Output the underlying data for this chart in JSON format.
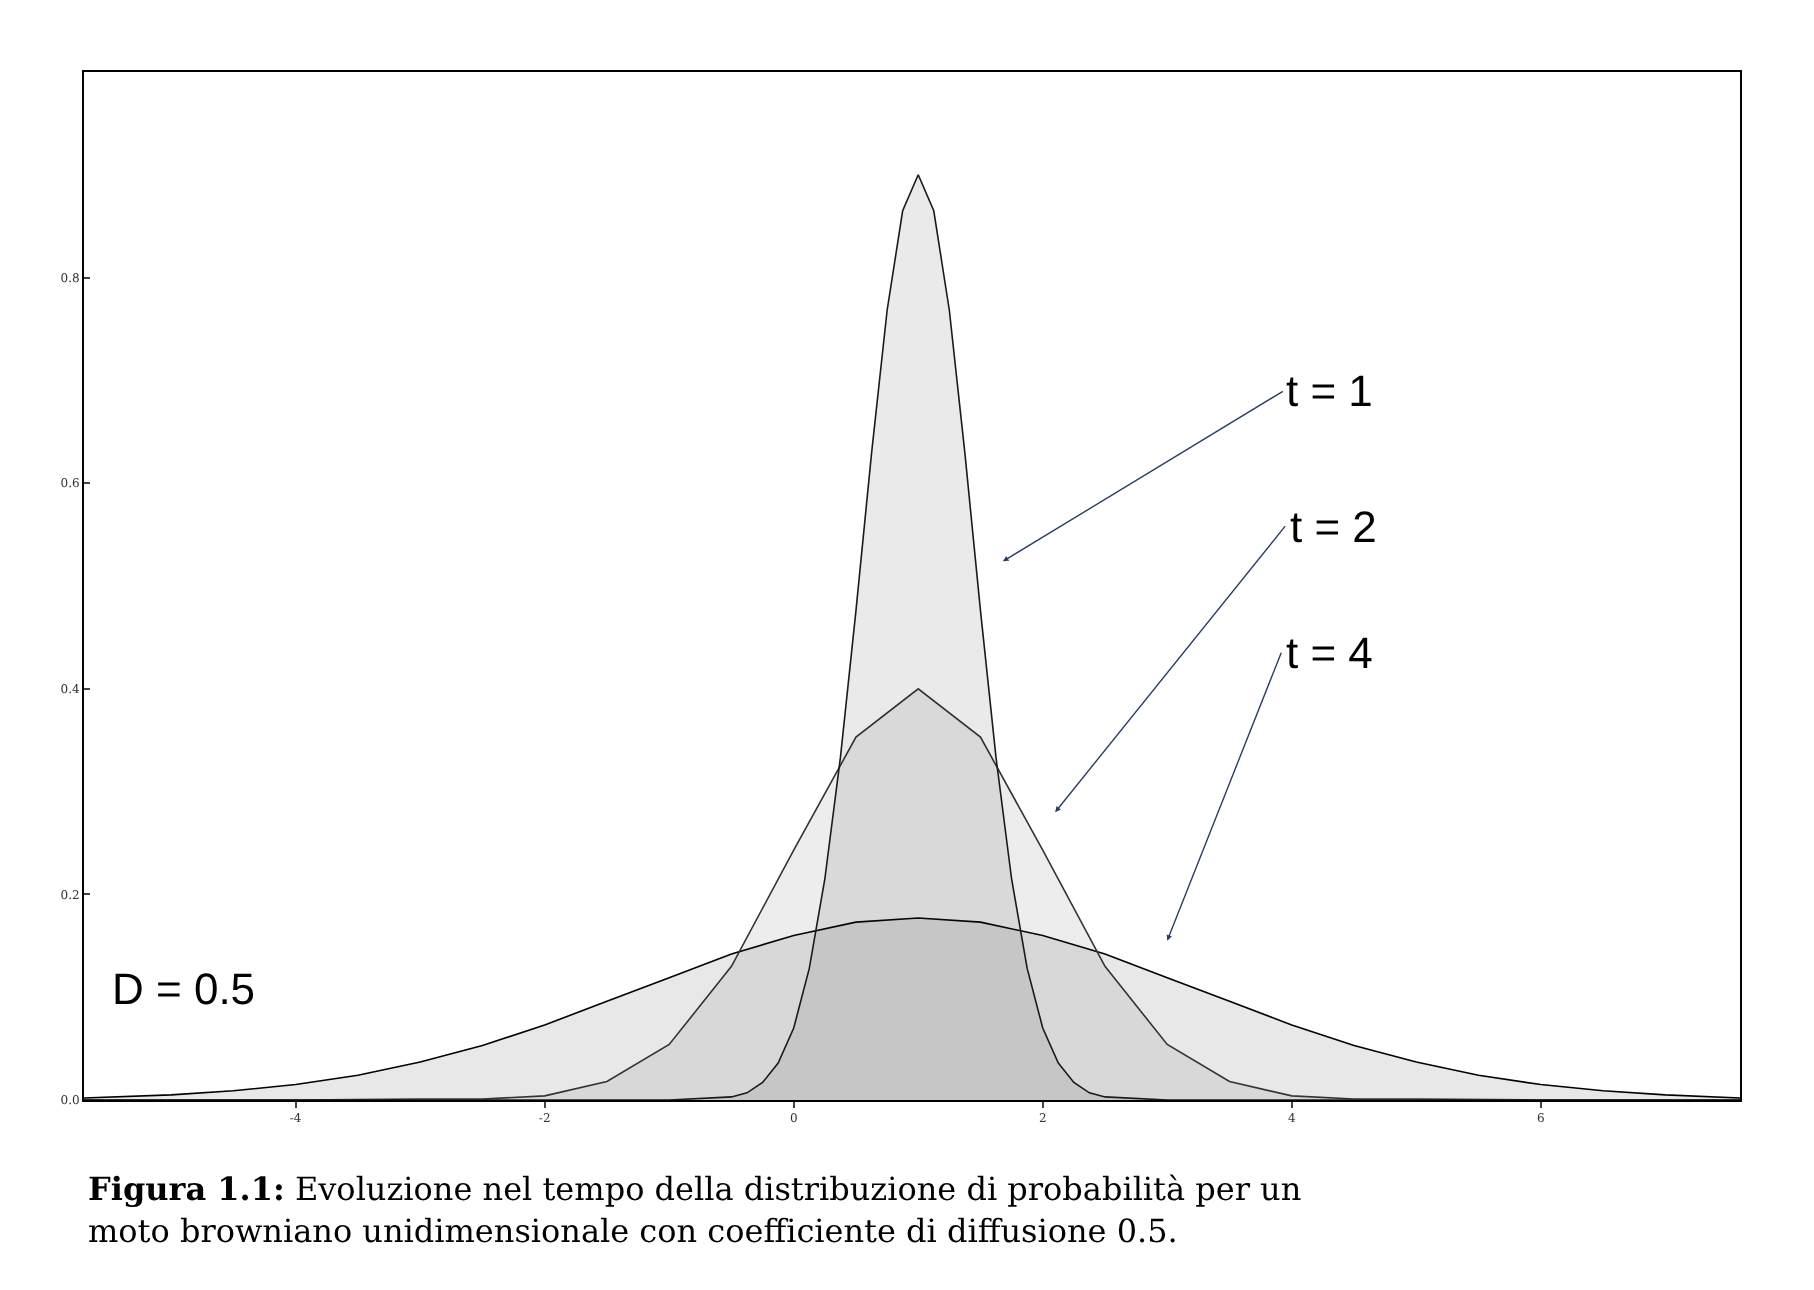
{
  "chart_data": {
    "type": "area",
    "xlim": [
      -5.7,
      7.6
    ],
    "ylim": [
      0,
      1.0
    ],
    "xticks": [
      -4,
      -2,
      0,
      2,
      4,
      6
    ],
    "yticks": [
      {
        "value": 0,
        "label": "0.0"
      },
      {
        "value": 0.2,
        "label": "0.2"
      },
      {
        "value": 0.4,
        "label": "0.4"
      },
      {
        "value": 0.6,
        "label": "0.6"
      },
      {
        "value": 0.8,
        "label": "0.8"
      }
    ],
    "marker": "none",
    "line_style": "solid",
    "series": [
      {
        "color": "#000000",
        "x": [
          -5.7,
          -5,
          -4.5,
          -4,
          -3.5,
          -3,
          -2.5,
          -2,
          -1.5,
          -1,
          -0.5,
          0,
          0.5,
          1,
          1.5,
          2,
          2.5,
          3,
          3.5,
          4,
          4.5,
          5,
          5.5,
          6,
          6.5,
          7,
          7.6
        ],
        "values": [
          0.002,
          0.005,
          0.009,
          0.015,
          0.024,
          0.037,
          0.053,
          0.073,
          0.096,
          0.119,
          0.142,
          0.16,
          0.173,
          0.177,
          0.173,
          0.16,
          0.142,
          0.119,
          0.096,
          0.073,
          0.053,
          0.037,
          0.024,
          0.015,
          0.009,
          0.005,
          0.002
        ]
      },
      {
        "color": "#333333",
        "x": [
          -5.7,
          -4,
          -3,
          -2.5,
          -2,
          -1.5,
          -1,
          -0.5,
          0,
          0.5,
          1,
          1.5,
          2,
          2.5,
          3,
          3.5,
          4,
          4.5,
          5,
          6,
          7.6
        ],
        "values": [
          0,
          0,
          0.001,
          0.001,
          0.004,
          0.018,
          0.054,
          0.13,
          0.243,
          0.353,
          0.4,
          0.353,
          0.243,
          0.13,
          0.054,
          0.018,
          0.004,
          0.001,
          0.001,
          0,
          0
        ]
      },
      {
        "color": "#1a1a1a",
        "x": [
          -5.7,
          -1,
          -0.5,
          -0.375,
          -0.25,
          -0.125,
          0,
          0.125,
          0.25,
          0.375,
          0.5,
          0.625,
          0.75,
          0.875,
          1,
          1.125,
          1.25,
          1.375,
          1.5,
          1.625,
          1.75,
          1.875,
          2,
          2.125,
          2.25,
          2.375,
          2.5,
          3,
          7.6
        ],
        "values": [
          0,
          0,
          0.003,
          0.007,
          0.017,
          0.036,
          0.07,
          0.128,
          0.215,
          0.333,
          0.476,
          0.629,
          0.768,
          0.865,
          0.9,
          0.865,
          0.768,
          0.629,
          0.476,
          0.333,
          0.215,
          0.128,
          0.07,
          0.036,
          0.017,
          0.007,
          0.003,
          0,
          0
        ]
      }
    ],
    "annotations": [
      {
        "text": "t = 1",
        "x": 1.68,
        "y": 0.524
      },
      {
        "text": "t = 2",
        "x": 2.1,
        "y": 0.28
      },
      {
        "text": "t = 4",
        "x": 3.0,
        "y": 0.155
      },
      "D = 0.5",
      "Figura 1.1: Evoluzione nel tempo della distribuzione di probabilità per un moto browniano unidimensionale con coefficiente di diffusione 0.5."
    ]
  }
}
